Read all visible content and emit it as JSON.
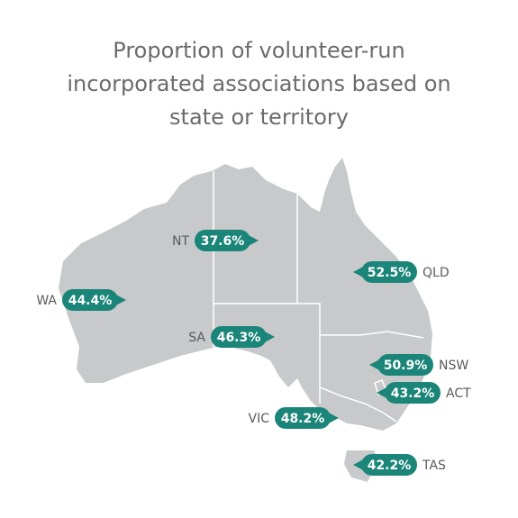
{
  "chart_data": {
    "type": "map",
    "title": "Proportion of volunteer-run incorporated associations based on state or territory",
    "categories": [
      "NT",
      "WA",
      "SA",
      "QLD",
      "NSW",
      "ACT",
      "VIC",
      "TAS"
    ],
    "values": [
      37.6,
      44.4,
      46.3,
      52.5,
      50.9,
      43.2,
      48.2,
      42.2
    ],
    "value_labels": [
      "37.6%",
      "44.4%",
      "46.3%",
      "52.5%",
      "50.9%",
      "43.2%",
      "48.2%",
      "42.2%"
    ],
    "color": "#1a8578"
  }
}
